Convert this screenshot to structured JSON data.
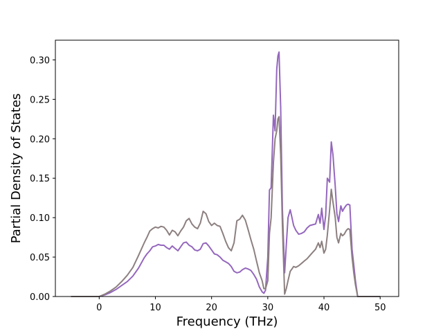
{
  "chart_data": {
    "type": "line",
    "title": "",
    "xlabel": "Frequency (THz)",
    "ylabel": "Partial Density of States",
    "xlim": [
      -7.8,
      53.3
    ],
    "ylim": [
      0,
      0.325
    ],
    "xticks": [
      0,
      10,
      20,
      30,
      40,
      50
    ],
    "xtick_labels": [
      "0",
      "10",
      "20",
      "30",
      "40",
      "50"
    ],
    "yticks": [
      0,
      0.05,
      0.1,
      0.15,
      0.2,
      0.25,
      0.3
    ],
    "ytick_labels": [
      "0.00",
      "0.05",
      "0.10",
      "0.15",
      "0.20",
      "0.25",
      "0.30"
    ],
    "grid": false,
    "legend": "none",
    "series": [
      {
        "color": "#9467bd",
        "x": [
          -5,
          0,
          1,
          2,
          3,
          4,
          5,
          6,
          7,
          8,
          8.5,
          9,
          9.5,
          10,
          10.5,
          11,
          11.5,
          12,
          12.5,
          13,
          13.5,
          14,
          14.5,
          15,
          15.5,
          16,
          16.5,
          17,
          17.5,
          18,
          18.5,
          19,
          19.5,
          20,
          20.5,
          21,
          21.5,
          22,
          22.5,
          23,
          23.5,
          24,
          24.5,
          25,
          25.5,
          26,
          26.5,
          27,
          27.5,
          28,
          28.5,
          29,
          29.3,
          29.6,
          30,
          30.3,
          30.6,
          31,
          31.3,
          31.6,
          31.8,
          32,
          32.3,
          32.6,
          33,
          33.3,
          33.6,
          34,
          34.3,
          34.6,
          35,
          35.5,
          36,
          36.5,
          37,
          37.5,
          38,
          38.5,
          39,
          39.3,
          39.6,
          40,
          40.3,
          40.6,
          41,
          41.3,
          41.6,
          42,
          42.3,
          42.6,
          43,
          43.3,
          43.6,
          44,
          44.3,
          44.6,
          45,
          45.3,
          45.6,
          46,
          46.5,
          47,
          50
        ],
        "y": [
          0,
          0,
          0.002,
          0.005,
          0.009,
          0.014,
          0.019,
          0.026,
          0.036,
          0.049,
          0.054,
          0.058,
          0.063,
          0.064,
          0.066,
          0.065,
          0.065,
          0.062,
          0.06,
          0.064,
          0.061,
          0.058,
          0.063,
          0.068,
          0.069,
          0.065,
          0.063,
          0.059,
          0.058,
          0.06,
          0.067,
          0.068,
          0.064,
          0.059,
          0.054,
          0.053,
          0.05,
          0.046,
          0.044,
          0.042,
          0.038,
          0.032,
          0.03,
          0.031,
          0.034,
          0.036,
          0.035,
          0.033,
          0.028,
          0.022,
          0.012,
          0.006,
          0.004,
          0.008,
          0.05,
          0.135,
          0.138,
          0.23,
          0.21,
          0.288,
          0.305,
          0.31,
          0.24,
          0.11,
          0.03,
          0.065,
          0.1,
          0.11,
          0.1,
          0.09,
          0.084,
          0.079,
          0.08,
          0.082,
          0.087,
          0.09,
          0.091,
          0.092,
          0.104,
          0.093,
          0.112,
          0.085,
          0.103,
          0.15,
          0.145,
          0.196,
          0.18,
          0.14,
          0.105,
          0.095,
          0.115,
          0.108,
          0.112,
          0.116,
          0.117,
          0.116,
          0.06,
          0.04,
          0.02,
          0,
          0,
          0,
          0
        ]
      },
      {
        "color": "#8c7f7f",
        "x": [
          -5,
          0,
          1,
          2,
          3,
          4,
          5,
          6,
          7,
          8,
          8.5,
          9,
          9.5,
          10,
          10.5,
          11,
          11.5,
          12,
          12.5,
          13,
          13.5,
          14,
          14.5,
          15,
          15.5,
          16,
          16.5,
          17,
          17.5,
          18,
          18.5,
          19,
          19.5,
          20,
          20.5,
          21,
          21.5,
          22,
          22.5,
          23,
          23.5,
          24,
          24.5,
          25,
          25.5,
          26,
          26.5,
          27,
          27.5,
          28,
          28.5,
          29,
          29.3,
          29.6,
          30,
          30.3,
          30.6,
          31,
          31.3,
          31.6,
          31.8,
          32,
          32.3,
          32.6,
          33,
          33.3,
          33.6,
          34,
          34.3,
          34.6,
          35,
          35.5,
          36,
          36.5,
          37,
          37.5,
          38,
          38.5,
          39,
          39.3,
          39.6,
          40,
          40.3,
          40.6,
          41,
          41.3,
          41.6,
          42,
          42.3,
          42.6,
          43,
          43.3,
          43.6,
          44,
          44.3,
          44.6,
          45,
          45.3,
          45.6,
          46,
          46.5,
          47,
          50
        ],
        "y": [
          0,
          0,
          0.003,
          0.007,
          0.012,
          0.019,
          0.027,
          0.037,
          0.052,
          0.068,
          0.075,
          0.083,
          0.086,
          0.088,
          0.087,
          0.089,
          0.088,
          0.084,
          0.078,
          0.084,
          0.082,
          0.077,
          0.083,
          0.088,
          0.096,
          0.099,
          0.092,
          0.088,
          0.086,
          0.093,
          0.108,
          0.105,
          0.095,
          0.09,
          0.093,
          0.09,
          0.089,
          0.08,
          0.07,
          0.062,
          0.058,
          0.068,
          0.096,
          0.098,
          0.103,
          0.097,
          0.085,
          0.072,
          0.06,
          0.045,
          0.03,
          0.02,
          0.01,
          0.01,
          0.02,
          0.08,
          0.1,
          0.17,
          0.2,
          0.21,
          0.225,
          0.228,
          0.18,
          0.09,
          0.003,
          0.01,
          0.02,
          0.032,
          0.035,
          0.038,
          0.037,
          0.039,
          0.042,
          0.045,
          0.048,
          0.052,
          0.056,
          0.06,
          0.068,
          0.062,
          0.07,
          0.055,
          0.06,
          0.078,
          0.11,
          0.136,
          0.12,
          0.1,
          0.075,
          0.068,
          0.08,
          0.077,
          0.079,
          0.084,
          0.086,
          0.085,
          0.05,
          0.03,
          0.015,
          0,
          0,
          0,
          0
        ]
      }
    ]
  }
}
